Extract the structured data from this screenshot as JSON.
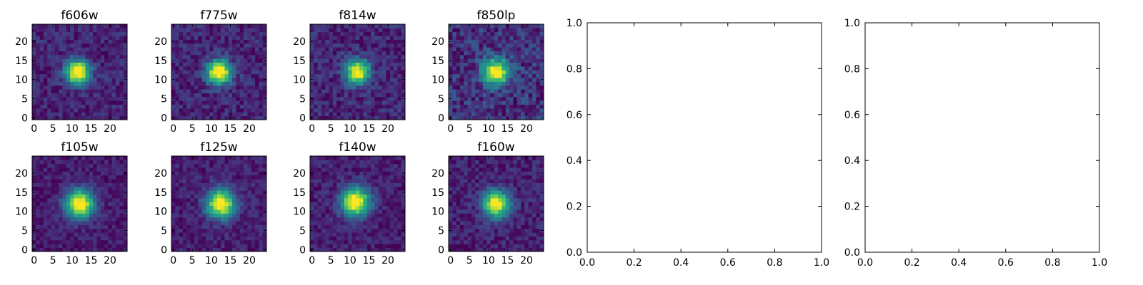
{
  "chart_data": {
    "type": "heatmap",
    "colormap": "viridis",
    "panels": [
      {
        "title": "f606w",
        "center": [
          11.5,
          12
        ],
        "sigma": 2.2,
        "peak": 1.0,
        "background": 0.18,
        "noise": 0.1,
        "seed": 11
      },
      {
        "title": "f775w",
        "center": [
          12,
          12
        ],
        "sigma": 2.2,
        "peak": 0.95,
        "background": 0.3,
        "noise": 0.1,
        "seed": 23
      },
      {
        "title": "f814w",
        "center": [
          12,
          12
        ],
        "sigma": 2.2,
        "peak": 1.0,
        "background": 0.3,
        "noise": 0.12,
        "seed": 37
      },
      {
        "title": "f850lp",
        "center": [
          12,
          12
        ],
        "sigma": 2.4,
        "peak": 1.0,
        "background": 0.45,
        "noise": 0.16,
        "seed": 51
      },
      {
        "title": "f105w",
        "center": [
          12,
          12
        ],
        "sigma": 2.6,
        "peak": 1.0,
        "background": 0.38,
        "noise": 0.08,
        "seed": 67
      },
      {
        "title": "f125w",
        "center": [
          12.5,
          12
        ],
        "sigma": 2.6,
        "peak": 1.0,
        "background": 0.38,
        "noise": 0.09,
        "seed": 79
      },
      {
        "title": "f140w",
        "center": [
          11.5,
          12.5
        ],
        "sigma": 2.6,
        "peak": 1.0,
        "background": 0.36,
        "noise": 0.09,
        "seed": 83
      },
      {
        "title": "f160w",
        "center": [
          12,
          12
        ],
        "sigma": 2.4,
        "peak": 1.0,
        "background": 0.25,
        "noise": 0.1,
        "seed": 97
      }
    ],
    "image_axes": {
      "xlim": [
        0,
        24
      ],
      "ylim": [
        0,
        24
      ],
      "xticks": [
        "0",
        "5",
        "10",
        "15",
        "20"
      ],
      "yticks": [
        "0",
        "5",
        "10",
        "15",
        "20"
      ],
      "grid_size": 25
    },
    "empty_axes": [
      {
        "xlim": [
          0,
          1
        ],
        "ylim": [
          0,
          1
        ],
        "xticks": [
          "0.0",
          "0.2",
          "0.4",
          "0.6",
          "0.8",
          "1.0"
        ],
        "yticks": [
          "0.0",
          "0.2",
          "0.4",
          "0.6",
          "0.8",
          "1.0"
        ]
      },
      {
        "xlim": [
          0,
          1
        ],
        "ylim": [
          0,
          1
        ],
        "xticks": [
          "0.0",
          "0.2",
          "0.4",
          "0.6",
          "0.8",
          "1.0"
        ],
        "yticks": [
          "0.0",
          "0.2",
          "0.4",
          "0.6",
          "0.8",
          "1.0"
        ]
      }
    ],
    "grid": false
  }
}
